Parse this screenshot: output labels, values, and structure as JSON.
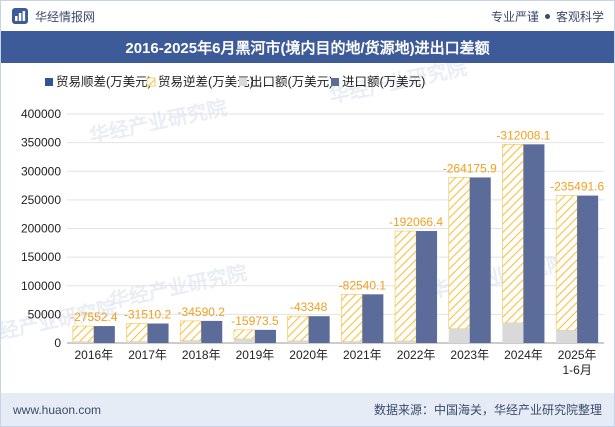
{
  "header": {
    "brand": "华经情报网",
    "slogan_left": "专业严谨",
    "slogan_right": "客观科学"
  },
  "title": "2016-2025年6月黑河市(境内目的地/货源地)进出口差额",
  "footer": {
    "website": "www.huaon.com",
    "source": "数据来源：中国海关，华经产业研究院整理"
  },
  "watermark": "华经产业研究院",
  "chart_data": {
    "type": "bar",
    "title": "2016-2025年6月黑河市(境内目的地/货源地)进出口差额",
    "categories": [
      "2016年",
      "2017年",
      "2018年",
      "2019年",
      "2020年",
      "2021年",
      "2022年",
      "2023年",
      "2024年",
      "2025年\n1-6月"
    ],
    "ylim": [
      0,
      400000
    ],
    "yticks": [
      0,
      50000,
      100000,
      150000,
      200000,
      250000,
      300000,
      350000,
      400000
    ],
    "legend": [
      {
        "name": "贸易顺差(万美元)",
        "color": "#2f5597"
      },
      {
        "name": "贸易逆差(万美元)",
        "color": "#f5c242"
      },
      {
        "name": "出口额(万美元)",
        "color": "#d9d9d9"
      },
      {
        "name": "进口额(万美元)",
        "color": "#5b6b9a"
      }
    ],
    "legend_position": "top-left",
    "series": [
      {
        "name": "出口额(万美元)",
        "values": [
          2000,
          2500,
          4000,
          7000,
          3500,
          2500,
          3500,
          25000,
          35000,
          22000
        ]
      },
      {
        "name": "进口额(万美元)",
        "values": [
          29552.4,
          34010.2,
          38590.2,
          22973.5,
          46848,
          85040.1,
          195566.4,
          289175.9,
          347008.1,
          257491.6
        ]
      },
      {
        "name": "贸易差额(万美元)",
        "values": [
          -27552.4,
          -31510.2,
          -34590.2,
          -15973.5,
          -43348,
          -82540.1,
          -192066.4,
          -264175.9,
          -312008.1,
          -235491.6
        ]
      }
    ],
    "data_labels": [
      "-27552.4",
      "-31510.2",
      "-34590.2",
      "-15973.5",
      "-43348",
      "-82540.1",
      "-192066.4",
      "-264175.9",
      "-312008.1",
      "-235491.6"
    ],
    "label_color": "#f0a020",
    "grid": true
  }
}
